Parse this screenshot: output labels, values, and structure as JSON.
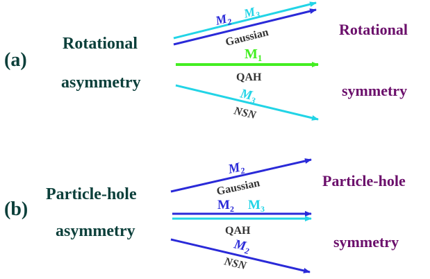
{
  "panels": {
    "a": {
      "tag": "(a)",
      "left_line1": "Rotational",
      "left_line2": "asymmetry",
      "right_line1": "Rotational",
      "right_line2": "symmetry",
      "arrow1_label_a": "M",
      "arrow1_label_a_sub": "2",
      "arrow1_label_b": "M",
      "arrow1_label_b_sub": "3",
      "arrow1_name": "Gaussian",
      "arrow2_label": "M",
      "arrow2_label_sub": "1",
      "arrow2_name": "QAH",
      "arrow3_label": "M",
      "arrow3_label_sub": "3",
      "arrow3_name": "NSN"
    },
    "b": {
      "tag": "(b)",
      "left_line1": "Particle-hole",
      "left_line2": "asymmetry",
      "right_line1": "Particle-hole",
      "right_line2": "symmetry",
      "arrow1_label": "M",
      "arrow1_label_sub": "2",
      "arrow1_name": "Gaussian",
      "arrow2_label_a": "M",
      "arrow2_label_a_sub": "2",
      "arrow2_label_b": "M",
      "arrow2_label_b_sub": "3",
      "arrow2_name": "QAH",
      "arrow3_label": "M",
      "arrow3_label_sub": "2",
      "arrow3_name": "NSN"
    }
  },
  "colors": {
    "dark_teal": "#0b3f3a",
    "purple": "#6b0f6b",
    "navy": "#111111",
    "m1_green": "#44ee22",
    "m2_blue": "#2a2ad8",
    "m3_cyan": "#22d4e6",
    "name_gray": "#333333"
  }
}
